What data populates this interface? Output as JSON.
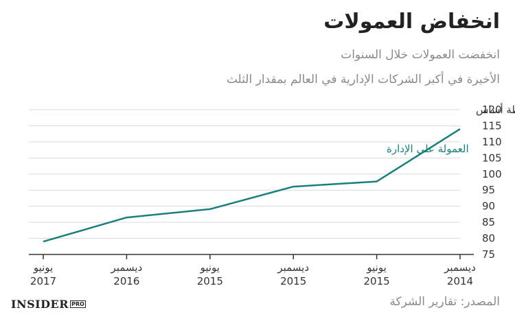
{
  "title": "انخفاض العمولات",
  "subtitle_line1": "انخفضت العمولات خلال السنوات",
  "subtitle_line2": "الأخيرة في أكبر الشركات الإدارية في العالم بمقدار الثلث",
  "source": "المصدر: تقارير الشركة",
  "logo": {
    "main": "INSIDER",
    "badge": "PRO"
  },
  "colors": {
    "series": "#1a7f7a",
    "grid": "#d9d9d9",
    "axis": "#333333"
  },
  "chart_data": {
    "type": "line",
    "ylabel": "نقطة أساس",
    "ylim": [
      75,
      120
    ],
    "yticks": [
      75,
      80,
      85,
      90,
      95,
      100,
      105,
      110,
      115,
      120
    ],
    "grid": true,
    "x_order": "right-to-left",
    "categories": [
      {
        "month": "ديسمبر",
        "year": "2014"
      },
      {
        "month": "يونيو",
        "year": "2015"
      },
      {
        "month": "ديسمبر",
        "year": "2015"
      },
      {
        "month": "يونيو",
        "year": "2015"
      },
      {
        "month": "ديسمبر",
        "year": "2016"
      },
      {
        "month": "يونيو",
        "year": "2017"
      }
    ],
    "series": [
      {
        "name": "العمولة على الإدارة",
        "values": [
          114,
          97.7,
          96.1,
          89.1,
          86.5,
          79
        ]
      }
    ]
  }
}
